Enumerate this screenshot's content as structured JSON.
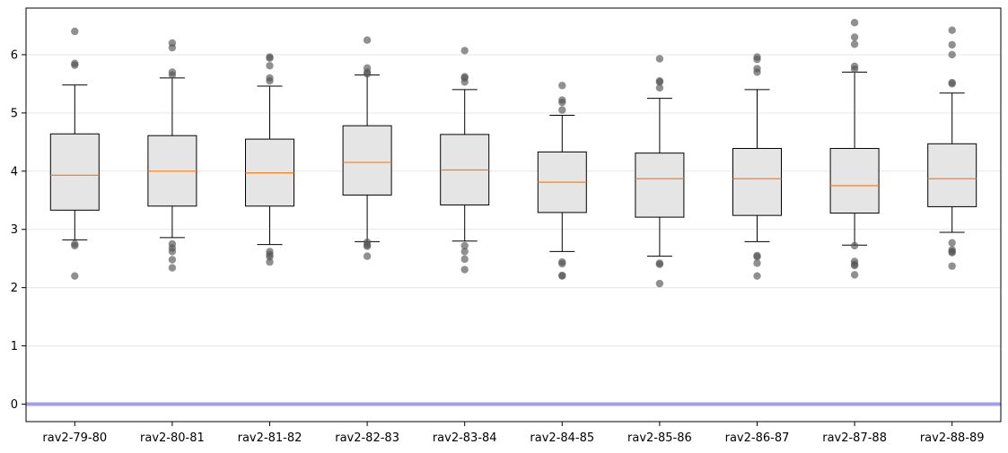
{
  "chart_data": {
    "type": "box",
    "title": "",
    "xlabel": "",
    "ylabel": "",
    "ylim": [
      -0.3,
      6.8
    ],
    "yticks": [
      0,
      1,
      2,
      3,
      4,
      5,
      6
    ],
    "grid": {
      "y": true,
      "x": false
    },
    "reference_line": {
      "y": 0,
      "color": "#a0a0f0"
    },
    "colors": {
      "box_fill": "#e5e5e5",
      "box_edge": "#000000",
      "median": "#ff7f0e",
      "outlier": "#555555"
    },
    "categories": [
      "rav2-79-80",
      "rav2-80-81",
      "rav2-81-82",
      "rav2-82-83",
      "rav2-83-84",
      "rav2-84-85",
      "rav2-85-86",
      "rav2-86-87",
      "rav2-87-88",
      "rav2-88-89"
    ],
    "boxes": [
      {
        "whisker_low": 2.82,
        "q1": 3.33,
        "median": 3.93,
        "q3": 4.64,
        "whisker_high": 5.48,
        "outliers": [
          6.4,
          5.85,
          5.82,
          2.75,
          2.72,
          2.2
        ]
      },
      {
        "whisker_low": 2.86,
        "q1": 3.4,
        "median": 4.0,
        "q3": 4.61,
        "whisker_high": 5.6,
        "outliers": [
          6.2,
          6.12,
          5.7,
          5.65,
          2.75,
          2.68,
          2.62,
          2.48,
          2.34
        ]
      },
      {
        "whisker_low": 2.74,
        "q1": 3.4,
        "median": 3.97,
        "q3": 4.55,
        "whisker_high": 5.46,
        "outliers": [
          5.96,
          5.94,
          5.81,
          5.6,
          5.55,
          2.62,
          2.57,
          2.53,
          2.44
        ]
      },
      {
        "whisker_low": 2.79,
        "q1": 3.59,
        "median": 4.15,
        "q3": 4.78,
        "whisker_high": 5.65,
        "outliers": [
          6.25,
          5.77,
          5.7,
          5.67,
          2.78,
          2.73,
          2.71,
          2.54
        ]
      },
      {
        "whisker_low": 2.8,
        "q1": 3.42,
        "median": 4.02,
        "q3": 4.63,
        "whisker_high": 5.4,
        "outliers": [
          6.07,
          5.62,
          5.6,
          5.53,
          2.72,
          2.62,
          2.49,
          2.31
        ]
      },
      {
        "whisker_low": 2.62,
        "q1": 3.29,
        "median": 3.81,
        "q3": 4.33,
        "whisker_high": 4.96,
        "outliers": [
          5.47,
          5.22,
          5.18,
          5.05,
          2.44,
          2.41,
          2.21,
          2.2
        ]
      },
      {
        "whisker_low": 2.54,
        "q1": 3.21,
        "median": 3.87,
        "q3": 4.31,
        "whisker_high": 5.25,
        "outliers": [
          5.93,
          5.55,
          5.53,
          5.43,
          2.42,
          2.4,
          2.07
        ]
      },
      {
        "whisker_low": 2.79,
        "q1": 3.24,
        "median": 3.87,
        "q3": 4.39,
        "whisker_high": 5.4,
        "outliers": [
          5.96,
          5.92,
          5.76,
          5.7,
          2.55,
          2.53,
          2.42,
          2.2
        ]
      },
      {
        "whisker_low": 2.73,
        "q1": 3.28,
        "median": 3.75,
        "q3": 4.39,
        "whisker_high": 5.7,
        "outliers": [
          6.55,
          6.3,
          6.18,
          5.8,
          5.75,
          2.72,
          2.45,
          2.4,
          2.38,
          2.22
        ]
      },
      {
        "whisker_low": 2.95,
        "q1": 3.39,
        "median": 3.87,
        "q3": 4.47,
        "whisker_high": 5.34,
        "outliers": [
          6.42,
          6.17,
          6.0,
          5.52,
          5.5,
          2.77,
          2.65,
          2.62,
          2.6,
          2.37
        ]
      }
    ]
  }
}
